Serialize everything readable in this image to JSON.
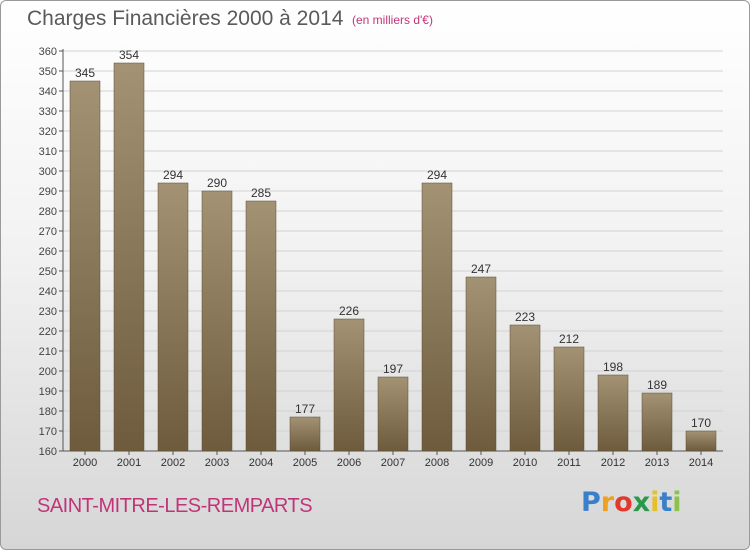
{
  "chart_data": {
    "type": "bar",
    "title": "Charges Financières 2000 à 2014",
    "subtitle": "(en milliers d'€)",
    "categories": [
      "2000",
      "2001",
      "2002",
      "2003",
      "2004",
      "2005",
      "2006",
      "2007",
      "2008",
      "2009",
      "2010",
      "2011",
      "2012",
      "2013",
      "2014"
    ],
    "values": [
      345,
      354,
      294,
      290,
      285,
      177,
      226,
      197,
      294,
      247,
      223,
      212,
      198,
      189,
      170
    ],
    "ylim": [
      160,
      360
    ],
    "ytick_step": 10,
    "grid": true,
    "bar_color_top": "#a39274",
    "bar_color_bottom": "#6e5b3d"
  },
  "footer": {
    "city": "SAINT-MITRE-LES-REMPARTS"
  },
  "logo": {
    "letters": [
      "P",
      "r",
      "o",
      "x",
      "i",
      "t",
      "i"
    ],
    "colors": [
      "#3a7fc9",
      "#f0a020",
      "#e03a2f",
      "#2a9a4a",
      "#e6c02a",
      "#3a7fc9",
      "#8bc34a"
    ]
  }
}
